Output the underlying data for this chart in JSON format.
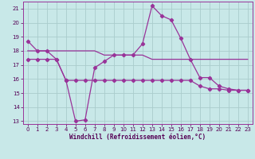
{
  "xlabel": "Windchill (Refroidissement éolien,°C)",
  "background_color": "#c8e8e8",
  "grid_color": "#b0d0d0",
  "line_color": "#993399",
  "ylim_min": 12.8,
  "ylim_max": 21.5,
  "xlim_min": -0.5,
  "xlim_max": 23.5,
  "yticks": [
    13,
    14,
    15,
    16,
    17,
    18,
    19,
    20,
    21
  ],
  "xticks": [
    0,
    1,
    2,
    3,
    4,
    5,
    6,
    7,
    8,
    9,
    10,
    11,
    12,
    13,
    14,
    15,
    16,
    17,
    18,
    19,
    20,
    21,
    22,
    23
  ],
  "line1_x": [
    0,
    1,
    2,
    3,
    4,
    5,
    6,
    7,
    8,
    9,
    10,
    11,
    12,
    13,
    14,
    15,
    16,
    17,
    18,
    19,
    20,
    21,
    22,
    23
  ],
  "line1_y": [
    18.7,
    18.0,
    18.0,
    17.4,
    15.9,
    13.0,
    13.1,
    16.8,
    17.25,
    17.7,
    17.7,
    17.7,
    18.5,
    21.2,
    20.5,
    20.2,
    18.9,
    17.4,
    16.1,
    16.1,
    15.5,
    15.3,
    15.2,
    15.2
  ],
  "line2_x": [
    0,
    1,
    2,
    3,
    4,
    5,
    6,
    7,
    8,
    9,
    10,
    11,
    12,
    13,
    14,
    15,
    16,
    17,
    18,
    19,
    20,
    21,
    22,
    23
  ],
  "line2_y": [
    17.4,
    17.4,
    17.4,
    17.4,
    15.9,
    15.9,
    15.9,
    15.9,
    15.9,
    15.9,
    15.9,
    15.9,
    15.9,
    15.9,
    15.9,
    15.9,
    15.9,
    15.9,
    15.5,
    15.3,
    15.3,
    15.2,
    15.2,
    15.2
  ],
  "line3_x": [
    0,
    1,
    2,
    3,
    4,
    5,
    6,
    7,
    8,
    9,
    10,
    11,
    12,
    13,
    14,
    15,
    16,
    17,
    18,
    19,
    20,
    21,
    22,
    23
  ],
  "line3_y": [
    18.0,
    18.0,
    18.0,
    18.0,
    18.0,
    18.0,
    18.0,
    18.0,
    17.7,
    17.7,
    17.7,
    17.7,
    17.7,
    17.4,
    17.4,
    17.4,
    17.4,
    17.4,
    17.4,
    17.4,
    17.4,
    17.4,
    17.4,
    17.4
  ]
}
